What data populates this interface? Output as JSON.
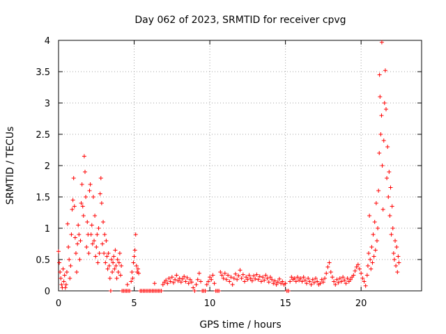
{
  "chart_data": {
    "type": "scatter",
    "title": "Day 062 of 2023, SRMTID for receiver cpvg",
    "xlabel": "GPS time / hours",
    "ylabel": "SRMTID / TECUs",
    "xlim": [
      0,
      24
    ],
    "ylim": [
      0,
      4
    ],
    "x_ticks": [
      0,
      5,
      10,
      15,
      20
    ],
    "x_tick_labels": [
      "0",
      "5",
      "10",
      "15",
      "20"
    ],
    "y_ticks": [
      0,
      0.5,
      1,
      1.5,
      2,
      2.5,
      3,
      3.5,
      4
    ],
    "y_tick_labels": [
      "0",
      "0.5",
      "1",
      "1.5",
      "2",
      "2.5",
      "3",
      "3.5",
      "4"
    ],
    "grid": true,
    "marker": "+",
    "series": [
      {
        "name": "SRMTID",
        "color": "#ff0000",
        "points": [
          [
            0.0,
            0.63
          ],
          [
            0.05,
            0.45
          ],
          [
            0.1,
            0.3
          ],
          [
            0.15,
            0.2
          ],
          [
            0.2,
            0.1
          ],
          [
            0.25,
            0.05
          ],
          [
            0.3,
            0.35
          ],
          [
            0.35,
            0.15
          ],
          [
            0.4,
            0.25
          ],
          [
            0.45,
            0.05
          ],
          [
            0.5,
            0.1
          ],
          [
            0.55,
            0.3
          ],
          [
            0.6,
            1.07
          ],
          [
            0.65,
            0.7
          ],
          [
            0.7,
            0.5
          ],
          [
            0.75,
            0.2
          ],
          [
            0.8,
            0.4
          ],
          [
            0.85,
            0.9
          ],
          [
            0.9,
            1.3
          ],
          [
            0.95,
            1.45
          ],
          [
            1.0,
            1.8
          ],
          [
            1.05,
            1.35
          ],
          [
            1.1,
            0.85
          ],
          [
            1.15,
            0.6
          ],
          [
            1.2,
            0.3
          ],
          [
            1.25,
            0.75
          ],
          [
            1.3,
            1.05
          ],
          [
            1.35,
            0.9
          ],
          [
            1.4,
            0.5
          ],
          [
            1.45,
            0.8
          ],
          [
            1.5,
            1.4
          ],
          [
            1.55,
            1.7
          ],
          [
            1.6,
            1.35
          ],
          [
            1.65,
            1.2
          ],
          [
            1.7,
            2.15
          ],
          [
            1.75,
            1.9
          ],
          [
            1.8,
            1.5
          ],
          [
            1.85,
            0.7
          ],
          [
            1.9,
            1.1
          ],
          [
            1.95,
            0.9
          ],
          [
            2.0,
            0.6
          ],
          [
            2.05,
            1.6
          ],
          [
            2.1,
            1.7
          ],
          [
            2.15,
            0.9
          ],
          [
            2.2,
            1.05
          ],
          [
            2.25,
            0.75
          ],
          [
            2.3,
            1.5
          ],
          [
            2.35,
            0.8
          ],
          [
            2.4,
            1.2
          ],
          [
            2.45,
            0.55
          ],
          [
            2.5,
            0.7
          ],
          [
            2.55,
            0.9
          ],
          [
            2.6,
            0.45
          ],
          [
            2.65,
            1.0
          ],
          [
            2.7,
            0.6
          ],
          [
            2.75,
            1.55
          ],
          [
            2.8,
            1.8
          ],
          [
            2.85,
            1.4
          ],
          [
            2.9,
            0.75
          ],
          [
            2.95,
            1.1
          ],
          [
            3.0,
            0.6
          ],
          [
            3.05,
            0.9
          ],
          [
            3.1,
            0.45
          ],
          [
            3.15,
            0.8
          ],
          [
            3.2,
            0.55
          ],
          [
            3.25,
            0.35
          ],
          [
            3.3,
            0.6
          ],
          [
            3.35,
            0.4
          ],
          [
            3.4,
            0.2
          ],
          [
            3.45,
            0.0
          ],
          [
            3.5,
            0.5
          ],
          [
            3.55,
            0.3
          ],
          [
            3.6,
            0.45
          ],
          [
            3.65,
            0.55
          ],
          [
            3.7,
            0.35
          ],
          [
            3.75,
            0.65
          ],
          [
            3.8,
            0.4
          ],
          [
            3.85,
            0.2
          ],
          [
            3.9,
            0.5
          ],
          [
            3.95,
            0.3
          ],
          [
            4.0,
            0.45
          ],
          [
            4.05,
            0.6
          ],
          [
            4.1,
            0.25
          ],
          [
            4.15,
            0.4
          ],
          [
            4.2,
            0.0
          ],
          [
            4.3,
            0.0
          ],
          [
            4.4,
            0.0
          ],
          [
            4.5,
            0.0
          ],
          [
            4.55,
            0.1
          ],
          [
            4.6,
            0.0
          ],
          [
            4.7,
            0.0
          ],
          [
            4.8,
            0.15
          ],
          [
            4.85,
            0.3
          ],
          [
            4.9,
            0.2
          ],
          [
            4.95,
            0.45
          ],
          [
            5.0,
            0.55
          ],
          [
            5.05,
            0.65
          ],
          [
            5.1,
            0.9
          ],
          [
            5.15,
            0.4
          ],
          [
            5.2,
            0.3
          ],
          [
            5.25,
            0.35
          ],
          [
            5.3,
            0.28
          ],
          [
            5.4,
            0.0
          ],
          [
            5.5,
            0.0
          ],
          [
            5.6,
            0.0
          ],
          [
            5.7,
            0.0
          ],
          [
            5.8,
            0.0
          ],
          [
            5.9,
            0.0
          ],
          [
            6.0,
            0.0
          ],
          [
            6.1,
            0.0
          ],
          [
            6.2,
            0.0
          ],
          [
            6.3,
            0.0
          ],
          [
            6.35,
            0.12
          ],
          [
            6.4,
            0.0
          ],
          [
            6.5,
            0.0
          ],
          [
            6.6,
            0.0
          ],
          [
            6.7,
            0.0
          ],
          [
            6.8,
            0.0
          ],
          [
            6.9,
            0.1
          ],
          [
            7.0,
            0.14
          ],
          [
            7.1,
            0.17
          ],
          [
            7.2,
            0.12
          ],
          [
            7.3,
            0.2
          ],
          [
            7.4,
            0.15
          ],
          [
            7.5,
            0.22
          ],
          [
            7.6,
            0.13
          ],
          [
            7.7,
            0.18
          ],
          [
            7.8,
            0.25
          ],
          [
            7.9,
            0.16
          ],
          [
            8.0,
            0.2
          ],
          [
            8.1,
            0.14
          ],
          [
            8.2,
            0.19
          ],
          [
            8.3,
            0.23
          ],
          [
            8.4,
            0.15
          ],
          [
            8.5,
            0.21
          ],
          [
            8.6,
            0.12
          ],
          [
            8.7,
            0.18
          ],
          [
            8.8,
            0.14
          ],
          [
            8.9,
            0.05
          ],
          [
            9.0,
            0.0
          ],
          [
            9.1,
            0.1
          ],
          [
            9.2,
            0.18
          ],
          [
            9.3,
            0.28
          ],
          [
            9.4,
            0.15
          ],
          [
            9.5,
            0.0
          ],
          [
            9.6,
            0.0
          ],
          [
            9.7,
            0.0
          ],
          [
            9.8,
            0.1
          ],
          [
            9.9,
            0.15
          ],
          [
            10.0,
            0.22
          ],
          [
            10.1,
            0.18
          ],
          [
            10.2,
            0.25
          ],
          [
            10.3,
            0.12
          ],
          [
            10.4,
            0.0
          ],
          [
            10.5,
            0.0
          ],
          [
            10.6,
            0.0
          ],
          [
            10.7,
            0.3
          ],
          [
            10.8,
            0.25
          ],
          [
            10.9,
            0.2
          ],
          [
            11.0,
            0.28
          ],
          [
            11.1,
            0.18
          ],
          [
            11.2,
            0.25
          ],
          [
            11.3,
            0.15
          ],
          [
            11.4,
            0.22
          ],
          [
            11.5,
            0.1
          ],
          [
            11.6,
            0.2
          ],
          [
            11.7,
            0.27
          ],
          [
            11.8,
            0.18
          ],
          [
            11.9,
            0.24
          ],
          [
            12.0,
            0.33
          ],
          [
            12.1,
            0.2
          ],
          [
            12.2,
            0.26
          ],
          [
            12.3,
            0.15
          ],
          [
            12.4,
            0.22
          ],
          [
            12.5,
            0.18
          ],
          [
            12.6,
            0.25
          ],
          [
            12.7,
            0.2
          ],
          [
            12.8,
            0.16
          ],
          [
            12.9,
            0.24
          ],
          [
            13.0,
            0.19
          ],
          [
            13.1,
            0.26
          ],
          [
            13.2,
            0.18
          ],
          [
            13.3,
            0.23
          ],
          [
            13.4,
            0.15
          ],
          [
            13.5,
            0.22
          ],
          [
            13.6,
            0.17
          ],
          [
            13.7,
            0.25
          ],
          [
            13.8,
            0.2
          ],
          [
            13.9,
            0.14
          ],
          [
            14.0,
            0.22
          ],
          [
            14.1,
            0.18
          ],
          [
            14.2,
            0.12
          ],
          [
            14.3,
            0.16
          ],
          [
            14.4,
            0.1
          ],
          [
            14.5,
            0.14
          ],
          [
            14.6,
            0.19
          ],
          [
            14.7,
            0.12
          ],
          [
            14.8,
            0.15
          ],
          [
            14.9,
            0.1
          ],
          [
            15.0,
            0.12
          ],
          [
            15.1,
            0.0
          ],
          [
            15.2,
            0.0
          ],
          [
            15.3,
            0.15
          ],
          [
            15.4,
            0.22
          ],
          [
            15.5,
            0.18
          ],
          [
            15.6,
            0.2
          ],
          [
            15.7,
            0.15
          ],
          [
            15.8,
            0.22
          ],
          [
            15.9,
            0.17
          ],
          [
            16.0,
            0.2
          ],
          [
            16.1,
            0.15
          ],
          [
            16.2,
            0.22
          ],
          [
            16.3,
            0.17
          ],
          [
            16.4,
            0.12
          ],
          [
            16.5,
            0.2
          ],
          [
            16.6,
            0.15
          ],
          [
            16.7,
            0.1
          ],
          [
            16.8,
            0.18
          ],
          [
            16.9,
            0.13
          ],
          [
            17.0,
            0.2
          ],
          [
            17.1,
            0.15
          ],
          [
            17.2,
            0.1
          ],
          [
            17.3,
            0.12
          ],
          [
            17.4,
            0.18
          ],
          [
            17.5,
            0.14
          ],
          [
            17.6,
            0.2
          ],
          [
            17.7,
            0.28
          ],
          [
            17.8,
            0.38
          ],
          [
            17.9,
            0.45
          ],
          [
            18.0,
            0.3
          ],
          [
            18.1,
            0.22
          ],
          [
            18.2,
            0.15
          ],
          [
            18.3,
            0.1
          ],
          [
            18.4,
            0.18
          ],
          [
            18.5,
            0.13
          ],
          [
            18.6,
            0.2
          ],
          [
            18.7,
            0.15
          ],
          [
            18.8,
            0.22
          ],
          [
            18.9,
            0.17
          ],
          [
            19.0,
            0.12
          ],
          [
            19.1,
            0.2
          ],
          [
            19.2,
            0.15
          ],
          [
            19.3,
            0.18
          ],
          [
            19.4,
            0.22
          ],
          [
            19.5,
            0.25
          ],
          [
            19.6,
            0.32
          ],
          [
            19.7,
            0.38
          ],
          [
            19.8,
            0.42
          ],
          [
            19.9,
            0.35
          ],
          [
            20.0,
            0.28
          ],
          [
            20.1,
            0.2
          ],
          [
            20.2,
            0.15
          ],
          [
            20.3,
            0.08
          ],
          [
            20.4,
            0.25
          ],
          [
            20.45,
            0.4
          ],
          [
            20.5,
            0.6
          ],
          [
            20.55,
            1.2
          ],
          [
            20.6,
            0.5
          ],
          [
            20.65,
            0.35
          ],
          [
            20.7,
            0.7
          ],
          [
            20.75,
            0.45
          ],
          [
            20.8,
            0.9
          ],
          [
            20.85,
            0.55
          ],
          [
            20.9,
            1.1
          ],
          [
            20.95,
            0.65
          ],
          [
            21.0,
            1.4
          ],
          [
            21.05,
            0.8
          ],
          [
            21.1,
            1.0
          ],
          [
            21.15,
            1.6
          ],
          [
            21.2,
            2.2
          ],
          [
            21.22,
            3.45
          ],
          [
            21.25,
            3.1
          ],
          [
            21.3,
            2.5
          ],
          [
            21.35,
            2.8
          ],
          [
            21.37,
            3.97
          ],
          [
            21.4,
            2.0
          ],
          [
            21.45,
            1.3
          ],
          [
            21.5,
            2.4
          ],
          [
            21.55,
            3.0
          ],
          [
            21.6,
            3.52
          ],
          [
            21.65,
            2.9
          ],
          [
            21.7,
            1.8
          ],
          [
            21.75,
            2.3
          ],
          [
            21.8,
            1.5
          ],
          [
            21.85,
            1.9
          ],
          [
            21.9,
            1.2
          ],
          [
            21.95,
            1.65
          ],
          [
            22.0,
            0.9
          ],
          [
            22.05,
            1.35
          ],
          [
            22.1,
            1.0
          ],
          [
            22.15,
            0.6
          ],
          [
            22.2,
            0.5
          ],
          [
            22.25,
            0.8
          ],
          [
            22.3,
            0.4
          ],
          [
            22.35,
            0.7
          ],
          [
            22.4,
            0.3
          ],
          [
            22.45,
            0.55
          ],
          [
            22.5,
            0.45
          ]
        ]
      }
    ]
  }
}
